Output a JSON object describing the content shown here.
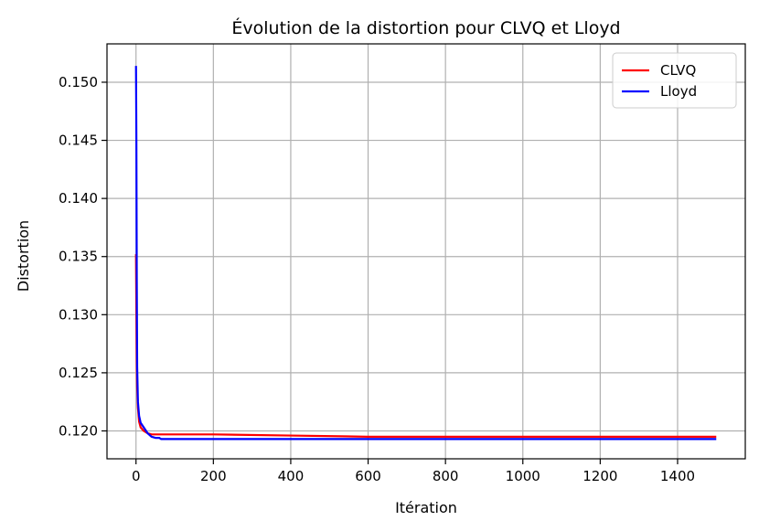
{
  "chart_data": {
    "type": "line",
    "title": "Évolution de la distortion pour CLVQ et Lloyd",
    "xlabel": "Itération",
    "ylabel": "Distortion",
    "xlim": [
      -75,
      1575
    ],
    "ylim": [
      0.1176,
      0.1533
    ],
    "xticks": [
      0,
      200,
      400,
      600,
      800,
      1000,
      1200,
      1400
    ],
    "xtick_labels": [
      "0",
      "200",
      "400",
      "600",
      "800",
      "1000",
      "1200",
      "1400"
    ],
    "yticks": [
      0.12,
      0.125,
      0.13,
      0.135,
      0.14,
      0.145,
      0.15
    ],
    "ytick_labels": [
      "0.120",
      "0.125",
      "0.130",
      "0.135",
      "0.140",
      "0.145",
      "0.150"
    ],
    "grid": true,
    "legend_position": "top-right",
    "series": [
      {
        "name": "CLVQ",
        "color": "#ff0000",
        "x": [
          0,
          1,
          2,
          3,
          5,
          8,
          12,
          20,
          30,
          40,
          60,
          100,
          200,
          400,
          600,
          800,
          1000,
          1200,
          1500
        ],
        "y": [
          0.1352,
          0.13,
          0.126,
          0.1238,
          0.122,
          0.1208,
          0.1203,
          0.12,
          0.1198,
          0.1197,
          0.1197,
          0.1197,
          0.1197,
          0.1196,
          0.1195,
          0.1195,
          0.1195,
          0.1195,
          0.1195
        ]
      },
      {
        "name": "Lloyd",
        "color": "#0000ff",
        "x": [
          0,
          1,
          2,
          3,
          5,
          8,
          12,
          20,
          30,
          40,
          50,
          60,
          65,
          100,
          300,
          600,
          1000,
          1500
        ],
        "y": [
          0.1514,
          0.145,
          0.133,
          0.1255,
          0.1225,
          0.1213,
          0.1207,
          0.1203,
          0.1198,
          0.1195,
          0.1194,
          0.1194,
          0.1193,
          0.1193,
          0.1193,
          0.1193,
          0.1193,
          0.1193
        ]
      }
    ]
  }
}
